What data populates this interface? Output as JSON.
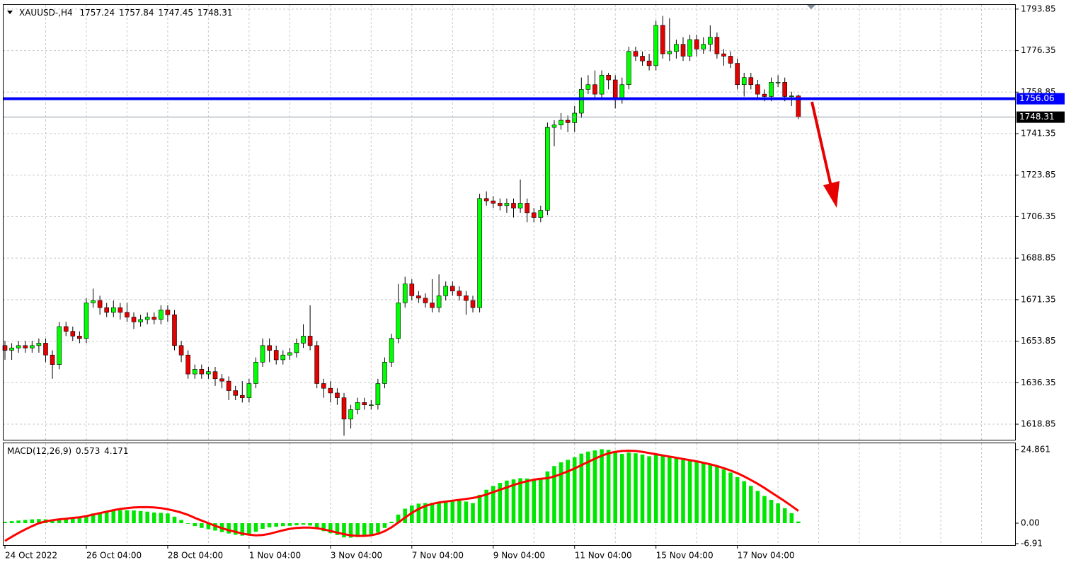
{
  "chart_data": [
    {
      "type": "candlestick",
      "title": "XAUUSD-,H4",
      "categories": [
        "24 Oct 2022",
        null,
        null,
        null,
        null,
        null,
        null,
        null,
        null,
        null,
        null,
        null,
        "26 Oct 04:00",
        null,
        null,
        null,
        null,
        null,
        null,
        null,
        null,
        null,
        null,
        null,
        "28 Oct 04:00",
        null,
        null,
        null,
        null,
        null,
        null,
        null,
        null,
        null,
        null,
        null,
        "1 Nov 04:00",
        null,
        null,
        null,
        null,
        null,
        null,
        null,
        null,
        null,
        null,
        null,
        "3 Nov 04:00",
        null,
        null,
        null,
        null,
        null,
        null,
        null,
        null,
        null,
        null,
        null,
        "7 Nov 04:00",
        null,
        null,
        null,
        null,
        null,
        null,
        null,
        null,
        null,
        null,
        null,
        "9 Nov 04:00",
        null,
        null,
        null,
        null,
        null,
        null,
        null,
        null,
        null,
        null,
        null,
        "11 Nov 04:00",
        null,
        null,
        null,
        null,
        null,
        null,
        null,
        null,
        null,
        null,
        null,
        "15 Nov 04:00",
        null,
        null,
        null,
        null,
        null,
        null,
        null,
        null,
        null,
        null,
        null,
        "17 Nov 04:00",
        null,
        null,
        null,
        null,
        null,
        null,
        null,
        null,
        null
      ],
      "open": [
        1652,
        1650,
        1651,
        1652,
        1651,
        1652,
        1653,
        1648,
        1644,
        1660,
        1658,
        1656,
        1655,
        1670,
        1671,
        1668,
        1666,
        1668,
        1666,
        1664,
        1662,
        1663,
        1664,
        1663,
        1667,
        1665,
        1652,
        1648,
        1640,
        1642,
        1640,
        1641,
        1638,
        1637,
        1633,
        1631,
        1630,
        1636,
        1645,
        1652,
        1650,
        1646,
        1648,
        1649,
        1653,
        1656,
        1652,
        1636,
        1634,
        1632,
        1630,
        1621,
        1625,
        1628,
        1627,
        1627,
        1636,
        1645,
        1655,
        1670,
        1678,
        1673,
        1672,
        1670,
        1668,
        1673,
        1677,
        1675,
        1673,
        1671,
        1668,
        1714,
        1713,
        1712,
        1711,
        1712,
        1710,
        1712,
        1708,
        1706,
        1709,
        1744,
        1745,
        1747,
        1746,
        1750,
        1760,
        1762,
        1758,
        1766,
        1764,
        1756,
        1762,
        1776,
        1774,
        1772,
        1770,
        1787,
        1775,
        1776,
        1779,
        1774,
        1781,
        1777,
        1779,
        1782,
        1775,
        1774,
        1771,
        1762,
        1765,
        1762,
        1758,
        1757,
        1763,
        1763,
        1757,
        1757.24
      ],
      "high": [
        1654,
        1653,
        1654,
        1654,
        1654,
        1655,
        1655,
        1650,
        1662,
        1662,
        1660,
        1658,
        1672,
        1676,
        1673,
        1670,
        1671,
        1670,
        1670,
        1666,
        1665,
        1666,
        1666,
        1669,
        1669,
        1667,
        1654,
        1650,
        1644,
        1644,
        1643,
        1643,
        1640,
        1639,
        1635,
        1637,
        1638,
        1647,
        1655,
        1655,
        1652,
        1650,
        1651,
        1655,
        1661,
        1669,
        1654,
        1638,
        1637,
        1634,
        1632,
        1627,
        1630,
        1630,
        1629,
        1638,
        1647,
        1657,
        1678,
        1681,
        1680,
        1675,
        1674,
        1680,
        1682,
        1679,
        1679,
        1677,
        1675,
        1673,
        1716,
        1717,
        1715,
        1714,
        1714,
        1714,
        1722,
        1714,
        1710,
        1711,
        1746,
        1747,
        1750,
        1749,
        1753,
        1765,
        1766,
        1768,
        1768,
        1767,
        1766,
        1765,
        1778,
        1778,
        1776,
        1775,
        1789,
        1791,
        1790,
        1781,
        1782,
        1783,
        1783,
        1782,
        1787,
        1784,
        1777,
        1776,
        1773,
        1767,
        1767,
        1764,
        1760,
        1765,
        1766,
        1765,
        1759,
        1757.84
      ],
      "low": [
        1646,
        1646,
        1649,
        1649,
        1649,
        1649,
        1645,
        1638,
        1642,
        1656,
        1654,
        1653,
        1653,
        1668,
        1665,
        1664,
        1664,
        1663,
        1662,
        1659,
        1660,
        1661,
        1661,
        1661,
        1662,
        1650,
        1645,
        1638,
        1638,
        1638,
        1638,
        1635,
        1634,
        1629,
        1629,
        1628,
        1628,
        1634,
        1643,
        1645,
        1644,
        1644,
        1646,
        1647,
        1651,
        1650,
        1634,
        1630,
        1628,
        1627,
        1614,
        1617,
        1623,
        1625,
        1625,
        1625,
        1634,
        1643,
        1653,
        1668,
        1671,
        1670,
        1668,
        1666,
        1666,
        1671,
        1673,
        1671,
        1665,
        1666,
        1666,
        1711,
        1710,
        1709,
        1708,
        1706,
        1708,
        1704,
        1704,
        1704,
        1707,
        1736,
        1743,
        1742,
        1742,
        1748,
        1758,
        1756,
        1756,
        1760,
        1752,
        1754,
        1760,
        1772,
        1770,
        1768,
        1768,
        1773,
        1772,
        1773,
        1772,
        1772,
        1774,
        1775,
        1776,
        1773,
        1770,
        1769,
        1760,
        1757,
        1760,
        1756,
        1755,
        1755,
        1761,
        1755,
        1753,
        1747.45
      ],
      "close": [
        1650,
        1651,
        1652,
        1651,
        1652,
        1653,
        1648,
        1644,
        1660,
        1658,
        1656,
        1655,
        1670,
        1671,
        1668,
        1666,
        1668,
        1666,
        1664,
        1662,
        1663,
        1664,
        1663,
        1667,
        1665,
        1652,
        1648,
        1640,
        1642,
        1640,
        1641,
        1638,
        1637,
        1633,
        1631,
        1630,
        1636,
        1645,
        1652,
        1650,
        1646,
        1648,
        1649,
        1653,
        1656,
        1652,
        1636,
        1634,
        1632,
        1630,
        1621,
        1625,
        1628,
        1627,
        1627,
        1636,
        1645,
        1655,
        1670,
        1678,
        1673,
        1672,
        1670,
        1668,
        1673,
        1677,
        1675,
        1673,
        1671,
        1668,
        1714,
        1713,
        1712,
        1711,
        1712,
        1710,
        1712,
        1708,
        1706,
        1709,
        1744,
        1745,
        1747,
        1746,
        1750,
        1760,
        1762,
        1758,
        1766,
        1764,
        1756,
        1762,
        1776,
        1774,
        1772,
        1770,
        1787,
        1775,
        1776,
        1779,
        1774,
        1781,
        1777,
        1779,
        1782,
        1775,
        1774,
        1771,
        1762,
        1765,
        1762,
        1758,
        1757,
        1763,
        1763,
        1757,
        1757.24,
        1748.31
      ],
      "up_color": "#00ff00",
      "down_color": "#e60000",
      "ylim": [
        1612.3,
        1795.6
      ],
      "yticks": [
        1793.85,
        1776.35,
        1758.85,
        1741.35,
        1723.85,
        1706.35,
        1688.85,
        1671.35,
        1653.85,
        1636.35,
        1618.85
      ],
      "grid": true,
      "horizontal_line": {
        "value": 1756.06,
        "color": "#0000ff"
      }
    },
    {
      "type": "macd",
      "title": "MACD(12,26,9)",
      "series": [
        {
          "color": "#00e600",
          "values": [
            0.5,
            0.7,
            0.9,
            1.1,
            1.3,
            1.4,
            1.3,
            1.1,
            1.4,
            1.6,
            1.7,
            1.7,
            2.6,
            3.3,
            3.7,
            4,
            4.3,
            4.4,
            4.4,
            4.3,
            4.1,
            3.9,
            3.6,
            3.5,
            3.3,
            2.2,
            1.1,
            -0.2,
            -1,
            -1.6,
            -2,
            -2.5,
            -3,
            -3.5,
            -3.9,
            -4.2,
            -3.8,
            -2.9,
            -1.9,
            -1.4,
            -1.2,
            -1,
            -0.9,
            -0.7,
            -0.5,
            -0.8,
            -1.9,
            -2.7,
            -3.4,
            -4,
            -4.8,
            -4.9,
            -4.7,
            -4.4,
            -4.1,
            -3.2,
            -1.6,
            0.5,
            2.9,
            4.9,
            6,
            6.6,
            6.8,
            6.9,
            7.2,
            7.6,
            7.8,
            7.7,
            7.3,
            6.8,
            9.6,
            11.3,
            12.6,
            13.6,
            14.4,
            14.8,
            15.2,
            15.1,
            14.8,
            14.7,
            17.5,
            19.3,
            20.6,
            21.4,
            22.3,
            23.5,
            24.2,
            24.6,
            25,
            24.8,
            23.8,
            23.4,
            23.9,
            23.6,
            23.2,
            22.6,
            23.2,
            22.8,
            22.4,
            22.1,
            21.5,
            21.2,
            20.7,
            20.3,
            19.9,
            19.1,
            18.2,
            17.1,
            15.6,
            14.2,
            12.6,
            10.9,
            9.2,
            7.9,
            6.7,
            5.1,
            3.4,
            0.573
          ]
        },
        {
          "color": "#ff0000",
          "values": [
            -6,
            -4.6,
            -3.3,
            -2.1,
            -1,
            0,
            0.6,
            1,
            1.3,
            1.5,
            1.8,
            2,
            2.4,
            2.9,
            3.4,
            3.9,
            4.4,
            4.8,
            5.1,
            5.3,
            5.4,
            5.4,
            5.3,
            5.1,
            4.7,
            4.2,
            3.6,
            2.8,
            1.8,
            0.9,
            0,
            -0.9,
            -1.7,
            -2.4,
            -2.9,
            -3.5,
            -3.9,
            -4.1,
            -4,
            -3.6,
            -3,
            -2.4,
            -1.9,
            -1.6,
            -1.5,
            -1.5,
            -1.7,
            -2.1,
            -2.6,
            -3.2,
            -3.7,
            -4.1,
            -4.3,
            -4.3,
            -4.1,
            -3.6,
            -2.7,
            -1.4,
            0.2,
            1.9,
            3.5,
            4.8,
            5.8,
            6.5,
            7,
            7.3,
            7.6,
            7.9,
            8.2,
            8.5,
            9,
            9.7,
            10.5,
            11.3,
            12.1,
            12.9,
            13.6,
            14.2,
            14.7,
            15,
            15.2,
            15.8,
            16.6,
            17.5,
            18.5,
            19.6,
            20.7,
            21.8,
            22.8,
            23.6,
            24.1,
            24.4,
            24.5,
            24.4,
            24.1,
            23.7,
            23.3,
            22.9,
            22.5,
            22.1,
            21.7,
            21.3,
            20.9,
            20.4,
            19.9,
            19.3,
            18.6,
            17.8,
            16.9,
            15.8,
            14.6,
            13.3,
            11.9,
            10.4,
            8.9,
            7.4,
            5.8,
            4.171
          ]
        }
      ],
      "ylim": [
        -7.4,
        27.0
      ],
      "yticks": [
        24.861,
        {
          "value": 0,
          "label": "0.00"
        },
        -6.91
      ]
    }
  ]
}
